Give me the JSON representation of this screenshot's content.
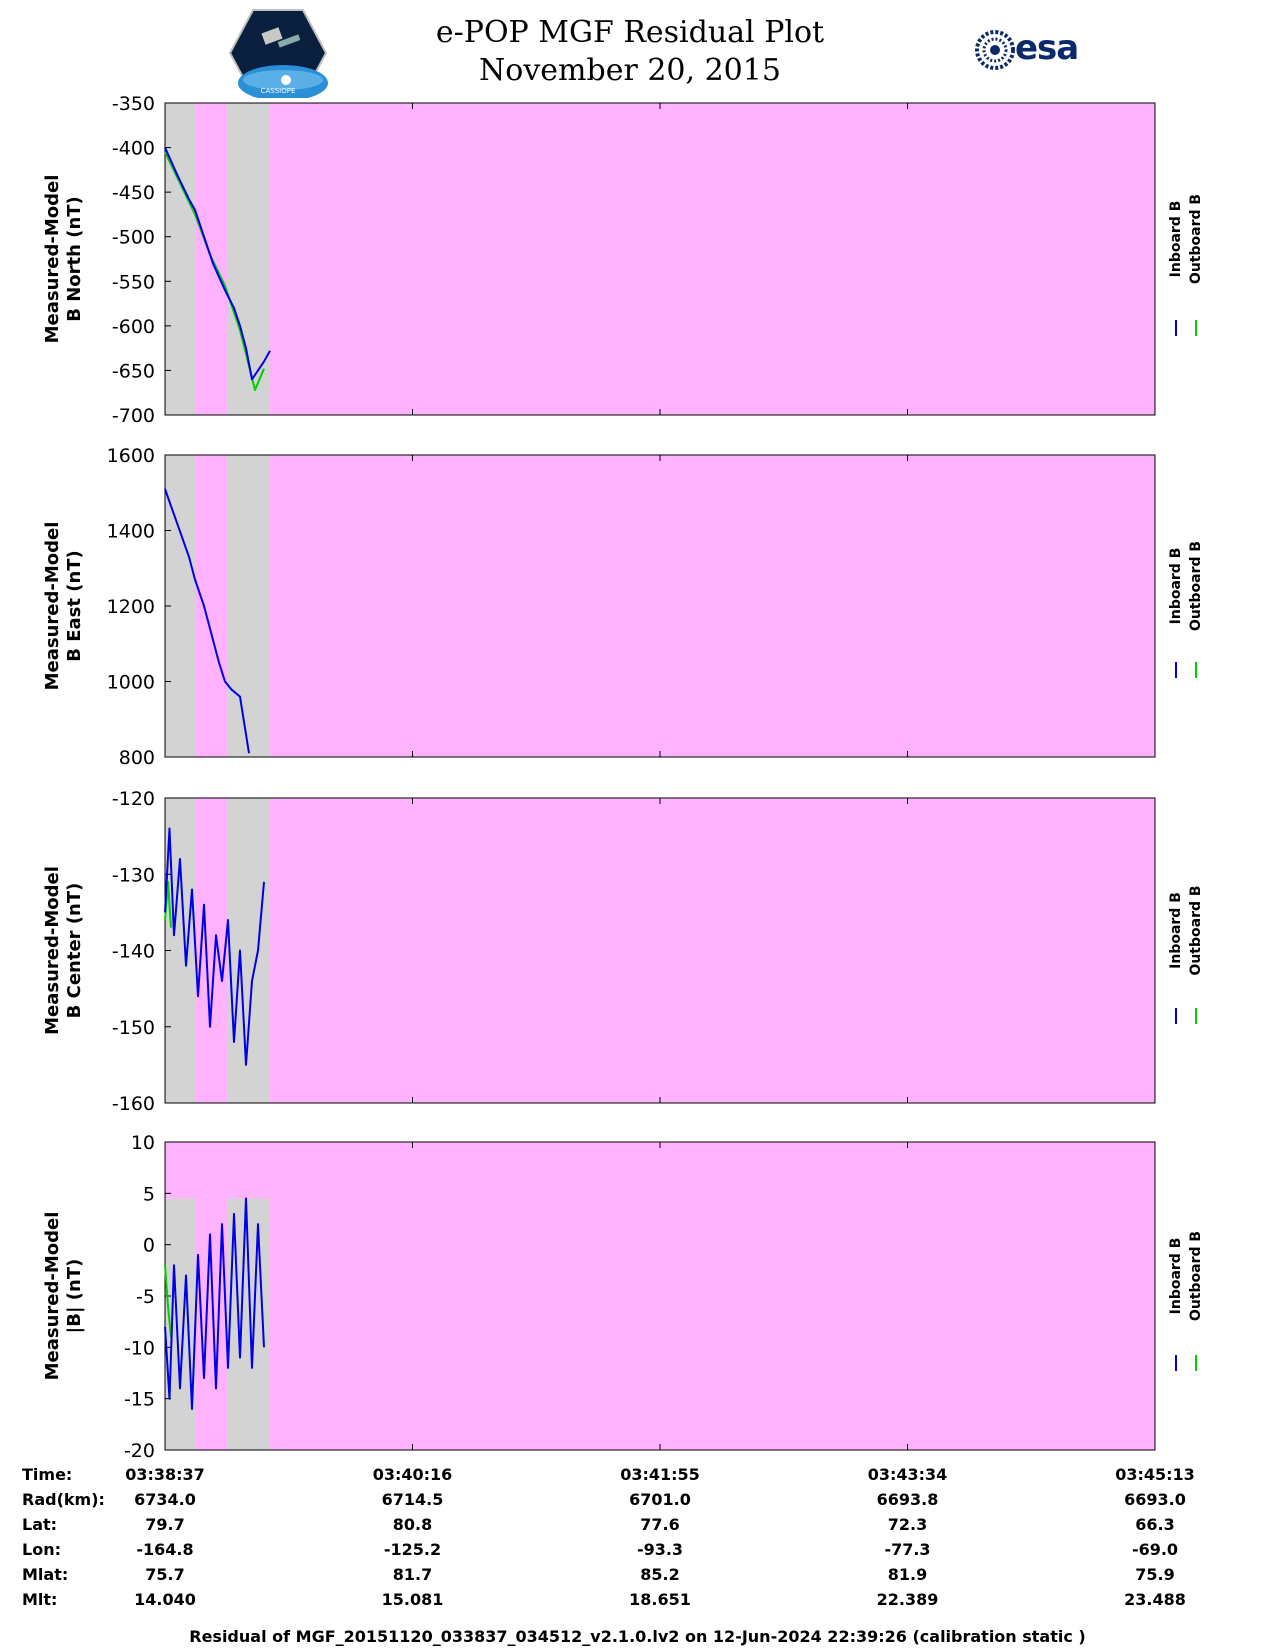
{
  "header": {
    "title_line1": "e-POP MGF Residual Plot",
    "title_line2": "November 20, 2015",
    "logo_left_text": "CASSIOPE",
    "logo_right_text": "esa"
  },
  "colors": {
    "plot_background": "#ffb3ff",
    "gap_shading": "#d3d3d3",
    "inboard": "#0000e6",
    "outboard": "#00d000"
  },
  "legend": {
    "inboard": "Inboard B",
    "outboard": "Outboard B"
  },
  "chart_data": [
    {
      "type": "line",
      "panel": "b_north",
      "ylabel_line1": "Measured-Model",
      "ylabel_line2": "B North (nT)",
      "ylim": [
        -700,
        -350
      ],
      "yticks": [
        -350,
        -400,
        -450,
        -500,
        -550,
        -600,
        -650,
        -700
      ],
      "shading": {
        "ymin": -700,
        "ymax": -350,
        "gray_intervals": [
          [
            0,
            0.2
          ],
          [
            0.42,
            0.7
          ]
        ]
      },
      "x_units": "minutes from 03:38:37",
      "series": [
        {
          "name": "Inboard B",
          "x": [
            0,
            0.08,
            0.16,
            0.2,
            0.26,
            0.32,
            0.4,
            0.46,
            0.5,
            0.54,
            0.58,
            0.62,
            0.66,
            0.7
          ],
          "y": [
            -400,
            -430,
            -458,
            -470,
            -500,
            -530,
            -560,
            -580,
            -600,
            -625,
            -660,
            -650,
            -640,
            -628
          ]
        },
        {
          "name": "Outboard B",
          "x": [
            0,
            0.1,
            0.2,
            0.3,
            0.4,
            0.5,
            0.6,
            0.66
          ],
          "y": [
            -405,
            -440,
            -475,
            -520,
            -555,
            -605,
            -672,
            -648
          ]
        }
      ]
    },
    {
      "type": "line",
      "panel": "b_east",
      "ylabel_line1": "Measured-Model",
      "ylabel_line2": "B East (nT)",
      "ylim": [
        800,
        1600
      ],
      "yticks": [
        1600,
        1400,
        1200,
        1000,
        800
      ],
      "shading": {
        "ymin": 800,
        "ymax": 1600,
        "gray_intervals": [
          [
            0,
            0.2
          ],
          [
            0.42,
            0.7
          ]
        ]
      },
      "x_units": "minutes from 03:38:37",
      "series": [
        {
          "name": "Inboard B",
          "x": [
            0,
            0.08,
            0.16,
            0.2,
            0.26,
            0.32,
            0.36,
            0.4,
            0.44,
            0.5,
            0.56
          ],
          "y": [
            1510,
            1420,
            1330,
            1270,
            1200,
            1110,
            1050,
            1000,
            980,
            960,
            810
          ]
        }
      ]
    },
    {
      "type": "line",
      "panel": "b_center",
      "ylabel_line1": "Measured-Model",
      "ylabel_line2": "B Center (nT)",
      "ylim": [
        -160,
        -120
      ],
      "yticks": [
        -120,
        -130,
        -140,
        -150,
        -160
      ],
      "shading": {
        "ymin": -160,
        "ymax": -120,
        "gray_intervals": [
          [
            0,
            0.2
          ],
          [
            0.42,
            0.7
          ]
        ]
      },
      "x_units": "minutes from 03:38:37",
      "series": [
        {
          "name": "Inboard B",
          "x": [
            0,
            0.03,
            0.06,
            0.1,
            0.14,
            0.18,
            0.22,
            0.26,
            0.3,
            0.34,
            0.38,
            0.42,
            0.46,
            0.5,
            0.54,
            0.58,
            0.62,
            0.66
          ],
          "y": [
            -135,
            -124,
            -138,
            -128,
            -142,
            -132,
            -146,
            -134,
            -150,
            -138,
            -144,
            -136,
            -152,
            -140,
            -155,
            -144,
            -140,
            -131
          ]
        },
        {
          "name": "Outboard B",
          "x": [
            0,
            0.02,
            0.04
          ],
          "y": [
            -136,
            -131,
            -137
          ]
        }
      ]
    },
    {
      "type": "line",
      "panel": "b_total",
      "ylabel_line1": "Measured-Model",
      "ylabel_line2": "|B| (nT)",
      "ylim": [
        -20,
        10
      ],
      "yticks": [
        10,
        5,
        0,
        -5,
        -10,
        -15,
        -20
      ],
      "shading": {
        "ymin": -20,
        "ymax": 4.5,
        "gray_intervals": [
          [
            0,
            0.2
          ],
          [
            0.42,
            0.7
          ]
        ]
      },
      "x_units": "minutes from 03:38:37",
      "series": [
        {
          "name": "Inboard B",
          "x": [
            0,
            0.03,
            0.06,
            0.1,
            0.14,
            0.18,
            0.22,
            0.26,
            0.3,
            0.34,
            0.38,
            0.42,
            0.46,
            0.5,
            0.54,
            0.58,
            0.62,
            0.66
          ],
          "y": [
            -8,
            -15,
            -2,
            -14,
            -3,
            -16,
            -1,
            -13,
            1,
            -14,
            2,
            -12,
            3,
            -11,
            4.5,
            -12,
            2,
            -10
          ]
        },
        {
          "name": "Outboard B",
          "x": [
            0,
            0.02,
            0.04
          ],
          "y": [
            -2,
            -6,
            -9
          ]
        }
      ]
    }
  ],
  "x_axis": {
    "xlim": [
      0,
      6.6
    ],
    "tick_positions": [
      0,
      1.65,
      3.3,
      4.95,
      6.6
    ]
  },
  "info_table": {
    "rows": [
      {
        "label": "Time:",
        "values": [
          "03:38:37",
          "03:40:16",
          "03:41:55",
          "03:43:34",
          "03:45:13"
        ]
      },
      {
        "label": "Rad(km):",
        "values": [
          "6734.0",
          "6714.5",
          "6701.0",
          "6693.8",
          "6693.0"
        ]
      },
      {
        "label": "Lat:",
        "values": [
          "79.7",
          "80.8",
          "77.6",
          "72.3",
          "66.3"
        ]
      },
      {
        "label": "Lon:",
        "values": [
          "-164.8",
          "-125.2",
          "-93.3",
          "-77.3",
          "-69.0"
        ]
      },
      {
        "label": "Mlat:",
        "values": [
          "75.7",
          "81.7",
          "85.2",
          "81.9",
          "75.9"
        ]
      },
      {
        "label": "Mlt:",
        "values": [
          "14.040",
          "15.081",
          "18.651",
          "22.389",
          "23.488"
        ]
      }
    ]
  },
  "footer": {
    "text": "Residual of MGF_20151120_033837_034512_v2.1.0.lv2 on 12-Jun-2024 22:39:26 (calibration static )"
  }
}
